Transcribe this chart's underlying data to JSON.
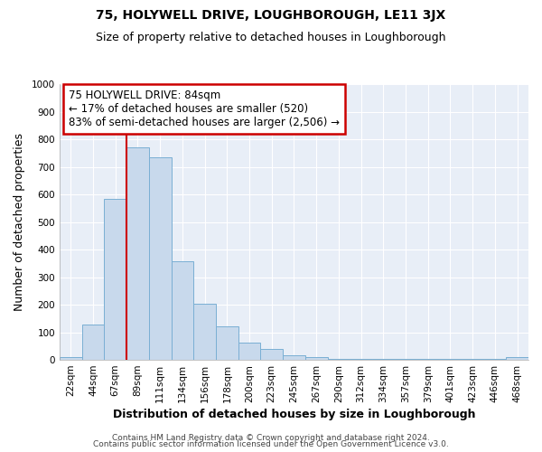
{
  "title": "75, HOLYWELL DRIVE, LOUGHBOROUGH, LE11 3JX",
  "subtitle": "Size of property relative to detached houses in Loughborough",
  "xlabel": "Distribution of detached houses by size in Loughborough",
  "ylabel": "Number of detached properties",
  "bin_labels": [
    "22sqm",
    "44sqm",
    "67sqm",
    "89sqm",
    "111sqm",
    "134sqm",
    "156sqm",
    "178sqm",
    "200sqm",
    "223sqm",
    "245sqm",
    "267sqm",
    "290sqm",
    "312sqm",
    "334sqm",
    "357sqm",
    "379sqm",
    "401sqm",
    "423sqm",
    "446sqm",
    "468sqm"
  ],
  "bar_values": [
    10,
    127,
    583,
    770,
    733,
    357,
    205,
    120,
    62,
    40,
    17,
    10,
    5,
    5,
    5,
    5,
    5,
    5,
    5,
    5,
    10
  ],
  "bar_color": "#c8d9ec",
  "bar_edge_color": "#7aafd4",
  "vline_color": "#cc0000",
  "annotation_title": "75 HOLYWELL DRIVE: 84sqm",
  "annotation_line1": "← 17% of detached houses are smaller (520)",
  "annotation_line2": "83% of semi-detached houses are larger (2,506) →",
  "annotation_box_edgecolor": "#cc0000",
  "ylim": [
    0,
    1000
  ],
  "yticks": [
    0,
    100,
    200,
    300,
    400,
    500,
    600,
    700,
    800,
    900,
    1000
  ],
  "footer1": "Contains HM Land Registry data © Crown copyright and database right 2024.",
  "footer2": "Contains public sector information licensed under the Open Government Licence v3.0.",
  "plot_bg_color": "#e8eef7",
  "fig_bg_color": "#ffffff",
  "grid_color": "#ffffff",
  "title_fontsize": 10,
  "subtitle_fontsize": 9,
  "axis_label_fontsize": 9,
  "tick_fontsize": 7.5,
  "annotation_fontsize": 8.5,
  "footer_fontsize": 6.5
}
